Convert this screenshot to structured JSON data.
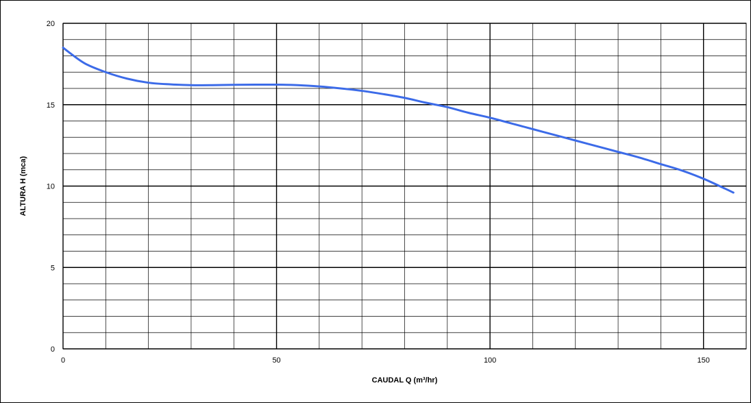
{
  "chart_data": {
    "type": "line",
    "title": "",
    "xlabel": "CAUDAL Q (m³/hr)",
    "ylabel": "ALTURA H (mca)",
    "xlim": [
      0,
      160
    ],
    "ylim": [
      0,
      20
    ],
    "x_ticks": [
      0,
      50,
      100,
      150
    ],
    "y_ticks": [
      0,
      5,
      10,
      15,
      20
    ],
    "x_tick_labels": [
      "0",
      "50",
      "100",
      "150"
    ],
    "y_tick_labels": [
      "0",
      "5",
      "10",
      "15",
      "20"
    ],
    "grid": true,
    "minor_x_step": 10,
    "minor_y_step": 1,
    "line_color": "#3c6be8",
    "series": [
      {
        "name": "",
        "points": [
          [
            0,
            18.5
          ],
          [
            5,
            17.55
          ],
          [
            10,
            17.0
          ],
          [
            15,
            16.6
          ],
          [
            20,
            16.35
          ],
          [
            25,
            16.25
          ],
          [
            30,
            16.2
          ],
          [
            35,
            16.2
          ],
          [
            40,
            16.22
          ],
          [
            45,
            16.23
          ],
          [
            50,
            16.23
          ],
          [
            55,
            16.2
          ],
          [
            60,
            16.12
          ],
          [
            65,
            16.0
          ],
          [
            70,
            15.85
          ],
          [
            75,
            15.65
          ],
          [
            80,
            15.42
          ],
          [
            85,
            15.12
          ],
          [
            90,
            14.85
          ],
          [
            95,
            14.5
          ],
          [
            100,
            14.2
          ],
          [
            105,
            13.85
          ],
          [
            110,
            13.5
          ],
          [
            115,
            13.15
          ],
          [
            120,
            12.8
          ],
          [
            125,
            12.45
          ],
          [
            130,
            12.1
          ],
          [
            135,
            11.75
          ],
          [
            140,
            11.35
          ],
          [
            145,
            10.95
          ],
          [
            150,
            10.45
          ],
          [
            155,
            9.85
          ],
          [
            157,
            9.6
          ]
        ]
      }
    ]
  }
}
